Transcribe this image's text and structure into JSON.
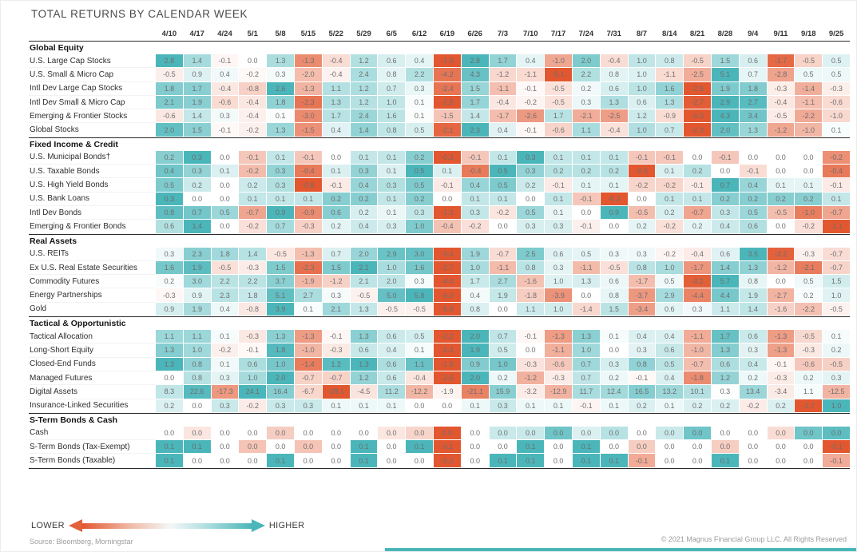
{
  "chart_data": {
    "type": "heatmap",
    "title": "TOTAL RETURNS BY CALENDAR WEEK",
    "columns": [
      "4/10",
      "4/17",
      "4/24",
      "5/1",
      "5/8",
      "5/15",
      "5/22",
      "5/29",
      "6/5",
      "6/12",
      "6/19",
      "6/26",
      "7/3",
      "7/10",
      "7/17",
      "7/24",
      "7/31",
      "8/7",
      "8/14",
      "8/21",
      "8/28",
      "9/4",
      "9/11",
      "9/18",
      "9/25"
    ],
    "groups": [
      {
        "name": "Global Equity",
        "rows": [
          {
            "label": "U.S. Large Cap Stocks",
            "values": [
              2.8,
              1.4,
              -0.1,
              0.0,
              1.3,
              -1.3,
              -0.4,
              1.2,
              0.6,
              0.4,
              -1.9,
              2.8,
              1.7,
              0.4,
              -1.0,
              2.0,
              -0.4,
              1.0,
              0.8,
              -0.5,
              1.5,
              0.6,
              -1.7,
              -0.5,
              0.5
            ]
          },
          {
            "label": "U.S. Small & Micro Cap",
            "values": [
              -0.5,
              0.9,
              0.4,
              -0.2,
              0.3,
              -2.0,
              -0.4,
              2.4,
              0.8,
              2.2,
              -4.2,
              4.3,
              -1.2,
              -1.1,
              -5.1,
              2.2,
              0.8,
              1.0,
              -1.1,
              -2.5,
              5.1,
              0.7,
              -2.8,
              0.5,
              0.5
            ]
          },
          {
            "label": "Intl Dev Large Cap Stocks",
            "values": [
              1.8,
              1.7,
              -0.4,
              -0.8,
              2.6,
              -1.3,
              1.1,
              1.2,
              0.7,
              0.3,
              -2.4,
              1.5,
              -1.1,
              -0.1,
              -0.5,
              0.2,
              0.6,
              1.0,
              1.6,
              -2.9,
              1.9,
              1.8,
              -0.3,
              -1.4,
              -0.3
            ]
          },
          {
            "label": "Intl Dev Small & Micro Cap",
            "values": [
              2.1,
              1.9,
              -0.6,
              -0.4,
              1.8,
              -2.3,
              1.3,
              1.2,
              1.0,
              0.1,
              -2.8,
              1.7,
              -0.4,
              -0.2,
              -0.5,
              0.3,
              1.3,
              0.6,
              1.3,
              -2.7,
              2.9,
              2.7,
              -0.4,
              -1.1,
              -0.6
            ]
          },
          {
            "label": "Emerging & Frontier Stocks",
            "values": [
              -0.6,
              1.4,
              0.3,
              -0.4,
              0.1,
              -3.0,
              1.7,
              2.4,
              1.6,
              0.1,
              -1.5,
              1.4,
              -1.7,
              -2.6,
              1.7,
              -2.1,
              -2.5,
              1.2,
              -0.9,
              -4.3,
              4.3,
              3.4,
              -0.5,
              -2.2,
              -1.0
            ]
          },
          {
            "label": "Global Stocks",
            "values": [
              2.0,
              1.5,
              -0.1,
              -0.2,
              1.3,
              -1.5,
              0.4,
              1.4,
              0.8,
              0.5,
              -2.1,
              2.3,
              0.4,
              -0.1,
              -0.6,
              1.1,
              -0.4,
              1.0,
              0.7,
              -2.3,
              2.0,
              1.3,
              -1.2,
              -1.0,
              0.1
            ]
          }
        ]
      },
      {
        "name": "Fixed Income & Credit",
        "rows": [
          {
            "label": "U.S. Municipal Bonds†",
            "values": [
              0.2,
              0.3,
              0.0,
              -0.1,
              0.1,
              -0.1,
              0.0,
              0.1,
              0.1,
              0.2,
              -0.3,
              -0.1,
              0.1,
              0.3,
              0.1,
              0.1,
              0.1,
              -0.1,
              -0.1,
              0.0,
              -0.1,
              0.0,
              0.0,
              0.0,
              -0.2
            ]
          },
          {
            "label": "U.S. Taxable Bonds",
            "values": [
              0.4,
              0.3,
              0.1,
              -0.2,
              0.3,
              -0.4,
              0.1,
              0.3,
              0.1,
              0.5,
              0.1,
              -0.4,
              0.5,
              0.3,
              0.2,
              0.2,
              0.2,
              -0.5,
              0.1,
              0.2,
              0.0,
              -0.1,
              0.0,
              0.0,
              -0.4
            ]
          },
          {
            "label": "U.S. High Yield Bonds",
            "values": [
              0.5,
              0.2,
              0.0,
              0.2,
              0.3,
              -0.8,
              -0.1,
              0.4,
              0.3,
              0.5,
              -0.1,
              0.4,
              0.5,
              0.2,
              -0.1,
              0.1,
              0.1,
              -0.2,
              -0.2,
              -0.1,
              0.7,
              0.4,
              0.1,
              0.1,
              -0.1
            ]
          },
          {
            "label": "U.S. Bank Loans",
            "values": [
              0.3,
              0.0,
              0.0,
              0.1,
              0.1,
              0.1,
              0.2,
              0.2,
              0.1,
              0.2,
              0.0,
              0.1,
              0.1,
              0.0,
              0.1,
              -0.1,
              -0.3,
              0.0,
              0.1,
              0.1,
              0.2,
              0.2,
              0.2,
              0.2,
              0.1
            ]
          },
          {
            "label": "Intl Dev Bonds",
            "values": [
              0.8,
              0.7,
              0.5,
              -0.7,
              0.9,
              -0.9,
              0.6,
              0.2,
              0.1,
              0.3,
              -1.3,
              0.3,
              -0.2,
              0.5,
              0.1,
              0.0,
              0.9,
              -0.5,
              0.2,
              -0.7,
              0.3,
              0.5,
              -0.5,
              -1.0,
              -0.7
            ]
          },
          {
            "label": "Emerging & Frontier Bonds",
            "values": [
              0.6,
              1.4,
              0.0,
              -0.2,
              0.7,
              -0.3,
              0.2,
              0.4,
              0.3,
              1.0,
              -0.4,
              -0.2,
              0.0,
              0.3,
              0.3,
              -0.1,
              0.0,
              0.2,
              -0.2,
              0.2,
              0.4,
              0.6,
              0.0,
              -0.2,
              -1.1
            ]
          }
        ]
      },
      {
        "name": "Real Assets",
        "rows": [
          {
            "label": "U.S. REITs",
            "values": [
              0.3,
              2.3,
              1.8,
              1.4,
              -0.5,
              -1.3,
              0.7,
              2.0,
              2.9,
              3.0,
              -3.4,
              1.9,
              -0.7,
              2.5,
              0.6,
              0.5,
              0.3,
              0.3,
              -0.2,
              -0.4,
              0.6,
              3.5,
              -3.2,
              -0.3,
              -0.7
            ]
          },
          {
            "label": "Ex U.S. Real Estate Securities",
            "values": [
              1.6,
              1.9,
              -0.5,
              -0.3,
              1.5,
              -2.3,
              1.5,
              2.1,
              1.0,
              1.6,
              -2.7,
              1.0,
              -1.1,
              0.8,
              0.3,
              -1.1,
              -0.5,
              0.8,
              1.0,
              -1.7,
              1.4,
              1.3,
              -1.2,
              -2.1,
              -0.7
            ]
          },
          {
            "label": "Commodity Futures",
            "values": [
              0.2,
              3.0,
              2.2,
              2.2,
              3.7,
              -1.9,
              -1.2,
              2.1,
              2.0,
              0.3,
              -4.4,
              1.7,
              2.7,
              -1.6,
              1.0,
              1.3,
              0.6,
              -1.7,
              0.5,
              -4.2,
              5.7,
              0.8,
              0.0,
              0.5,
              1.5
            ]
          },
          {
            "label": "Energy Partnerships",
            "values": [
              -0.3,
              0.9,
              2.3,
              1.8,
              5.1,
              2.7,
              0.3,
              -0.5,
              5.0,
              5.8,
              -6.0,
              0.4,
              1.9,
              -1.8,
              -3.9,
              0.0,
              0.8,
              -3.7,
              2.9,
              -4.4,
              4.4,
              1.9,
              -2.7,
              0.2,
              1.0
            ]
          },
          {
            "label": "Gold",
            "values": [
              0.9,
              1.9,
              0.4,
              -0.8,
              3.9,
              0.1,
              2.1,
              1.3,
              -0.5,
              -0.5,
              -5.9,
              0.8,
              0.0,
              1.1,
              1.0,
              -1.4,
              1.5,
              -3.4,
              0.6,
              0.3,
              1.1,
              1.4,
              -1.6,
              -2.2,
              -0.5
            ]
          }
        ]
      },
      {
        "name": "Tactical & Opportunistic",
        "rows": [
          {
            "label": "Tactical Allocation",
            "values": [
              1.1,
              1.1,
              0.1,
              -0.3,
              1.3,
              -1.3,
              -0.1,
              1.3,
              0.6,
              0.5,
              -2.2,
              2.0,
              0.7,
              -0.1,
              -1.3,
              1.3,
              0.1,
              0.4,
              0.4,
              -1.1,
              1.7,
              0.6,
              -1.3,
              -0.5,
              0.1
            ]
          },
          {
            "label": "Long-Short Equity",
            "values": [
              1.3,
              1.0,
              -0.2,
              -0.1,
              1.8,
              -1.0,
              -0.3,
              0.6,
              0.4,
              0.1,
              -2.3,
              1.9,
              0.5,
              0.0,
              -1.1,
              1.0,
              0.0,
              0.3,
              0.6,
              -1.0,
              1.3,
              0.3,
              -1.3,
              -0.3,
              0.2
            ]
          },
          {
            "label": "Closed-End Funds",
            "values": [
              1.3,
              0.8,
              0.1,
              0.6,
              1.0,
              -1.4,
              1.2,
              1.3,
              0.6,
              1.1,
              -1.8,
              0.9,
              1.0,
              -0.3,
              -0.6,
              0.7,
              0.3,
              0.8,
              0.5,
              -0.7,
              0.6,
              0.4,
              -0.1,
              -0.6,
              -0.5
            ]
          },
          {
            "label": "Managed Futures",
            "values": [
              0.0,
              0.8,
              0.3,
              1.0,
              2.0,
              -0.7,
              -0.7,
              1.2,
              0.6,
              -0.4,
              -2.6,
              2.0,
              0.2,
              -1.2,
              -0.3,
              0.7,
              0.2,
              -0.1,
              0.4,
              -1.8,
              1.2,
              0.2,
              -0.3,
              0.2,
              0.3
            ]
          },
          {
            "label": "Digital Assets",
            "values": [
              8.3,
              22.6,
              -17.3,
              24.1,
              16.4,
              -6.7,
              -28.1,
              -4.5,
              11.2,
              -12.2,
              -1.9,
              -21.1,
              15.9,
              -3.2,
              -12.9,
              11.7,
              12.4,
              16.5,
              13.2,
              10.1,
              0.3,
              13.4,
              -3.4,
              1.1,
              -12.5
            ]
          },
          {
            "label": "Insurance-Linked Securities",
            "values": [
              0.2,
              0.0,
              0.3,
              -0.2,
              0.3,
              0.3,
              0.1,
              0.1,
              0.1,
              0.0,
              0.0,
              0.1,
              0.3,
              0.1,
              0.1,
              -0.1,
              0.1,
              0.2,
              0.1,
              0.2,
              0.2,
              -0.2,
              0.2,
              -1.7,
              1.0
            ]
          }
        ]
      },
      {
        "name": "S-Term Bonds & Cash",
        "rows": [
          {
            "label": "Cash",
            "values": [
              0.0,
              0.0,
              0.0,
              0.0,
              0.0,
              0.0,
              0.0,
              0.0,
              0.0,
              0.0,
              0.0,
              0.0,
              0.0,
              0.0,
              0.0,
              0.0,
              0.0,
              0.0,
              0.0,
              0.0,
              0.0,
              0.0,
              0.0,
              0.0,
              0.0
            ],
            "shades": [
              0,
              -0.15,
              0,
              0,
              -0.3,
              0,
              0,
              0,
              -0.15,
              -0.25,
              -1,
              0,
              0.3,
              0.3,
              0.8,
              0.2,
              0.4,
              0,
              0.3,
              0.8,
              0,
              0,
              -0.2,
              0.8,
              0.9
            ]
          },
          {
            "label": "S-Term Bonds (Tax-Exempt)",
            "values": [
              0.1,
              0.1,
              0.0,
              0.0,
              0.0,
              0.0,
              0.0,
              0.1,
              0.0,
              0.1,
              -0.1,
              0.0,
              0.0,
              0.1,
              0.0,
              0.1,
              0.0,
              0.0,
              0.0,
              0.0,
              0.0,
              0.0,
              0.0,
              0.0,
              -0.1
            ],
            "shades": [
              0,
              0,
              0,
              -0.35,
              0,
              -0.35,
              0,
              0,
              0,
              0,
              0,
              0,
              0,
              0,
              0,
              0,
              0,
              -0.3,
              0,
              0,
              -0.3,
              0,
              0,
              0,
              0
            ]
          },
          {
            "label": "S-Term Bonds (Taxable)",
            "values": [
              0.1,
              0.0,
              0.0,
              0.0,
              0.1,
              0.0,
              0.0,
              0.1,
              0.0,
              0.0,
              -0.2,
              0.0,
              0.1,
              0.1,
              0.0,
              0.1,
              0.1,
              -0.1,
              0.0,
              0.0,
              0.1,
              0.0,
              0.0,
              0.0,
              -0.1
            ]
          }
        ]
      }
    ],
    "legend": {
      "lower_label": "LOWER",
      "higher_label": "HIGHER"
    },
    "color_scale": {
      "negative": "#e2572f",
      "positive": "#4bb6ba",
      "midpoint": "#ffffff",
      "normalization": "per-row"
    }
  },
  "footer": {
    "source": "Source: Bloomberg, Morningstar",
    "copyright": "© 2021 Magnus Financial Group LLC. All Rights Reserved"
  },
  "accent_bar_color": "#4bb6ba"
}
